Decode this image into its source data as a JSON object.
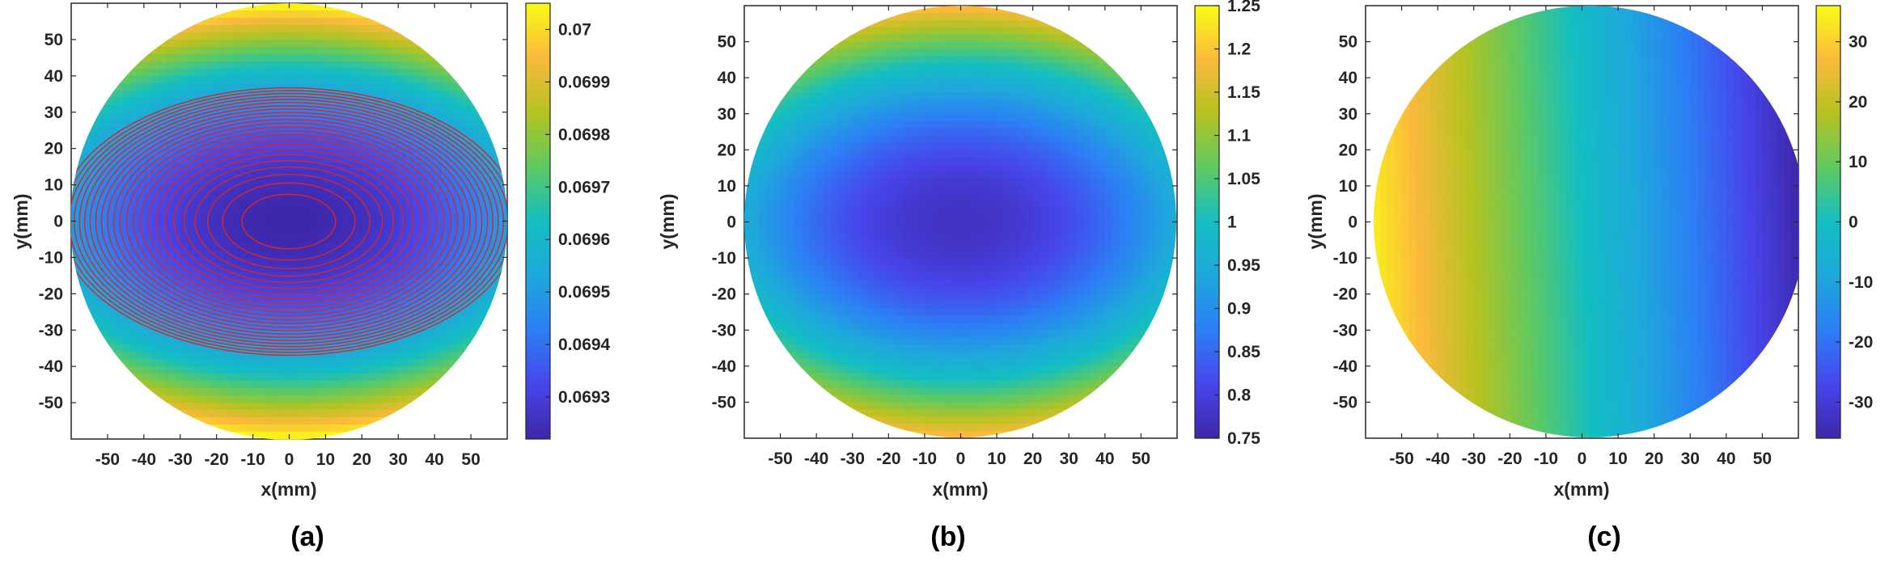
{
  "chart_data": [
    {
      "type": "heatmap",
      "panel_label": "(a)",
      "xlabel": "x(mm)",
      "ylabel": "y(mm)",
      "xlim": [
        -60,
        60
      ],
      "ylim": [
        -60,
        60
      ],
      "x_ticks": [
        -50,
        -40,
        -30,
        -20,
        -10,
        0,
        10,
        20,
        30,
        40,
        50
      ],
      "y_ticks": [
        50,
        40,
        30,
        20,
        10,
        0,
        -10,
        -20,
        -30,
        -40,
        -50
      ],
      "aperture_radius": 60,
      "contours": true,
      "contour_color": "#d62728",
      "colorbar": {
        "range": [
          0.06922,
          0.07005
        ],
        "ticks": [
          "0.07",
          "0.0699",
          "0.0698",
          "0.0697",
          "0.0696",
          "0.0695",
          "0.0694",
          "0.0693"
        ],
        "tick_values": [
          0.07,
          0.0699,
          0.0698,
          0.0697,
          0.0696,
          0.0695,
          0.0694,
          0.0693
        ]
      },
      "colormap": "parula",
      "field": "elliptical paraboloid, minimum at center, larger along y"
    },
    {
      "type": "heatmap",
      "panel_label": "(b)",
      "xlabel": "x(mm)",
      "ylabel": "y(mm)",
      "xlim": [
        -60,
        60
      ],
      "ylim": [
        -60,
        60
      ],
      "x_ticks": [
        -50,
        -40,
        -30,
        -20,
        -10,
        0,
        10,
        20,
        30,
        40,
        50
      ],
      "y_ticks": [
        50,
        40,
        30,
        20,
        10,
        0,
        -10,
        -20,
        -30,
        -40,
        -50
      ],
      "aperture_radius": 60,
      "contours": false,
      "colorbar": {
        "range": [
          0.75,
          1.25
        ],
        "ticks": [
          "1.25",
          "1.2",
          "1.15",
          "1.1",
          "1.05",
          "1",
          "0.95",
          "0.9",
          "0.85",
          "0.8",
          "0.75"
        ],
        "tick_values": [
          1.25,
          1.2,
          1.15,
          1.1,
          1.05,
          1.0,
          0.95,
          0.9,
          0.85,
          0.8,
          0.75
        ]
      },
      "colormap": "parula",
      "field": "minimum at center, maximum at top and bottom edges"
    },
    {
      "type": "heatmap",
      "panel_label": "(c)",
      "xlabel": "x(mm)",
      "ylabel": "y(mm)",
      "xlim": [
        -60,
        60
      ],
      "ylim": [
        -60,
        60
      ],
      "x_ticks": [
        -50,
        -40,
        -30,
        -20,
        -10,
        0,
        10,
        20,
        30,
        40,
        50
      ],
      "y_ticks": [
        50,
        40,
        30,
        20,
        10,
        0,
        -10,
        -20,
        -30,
        -40,
        -50
      ],
      "aperture_radius": 60,
      "contours": false,
      "colorbar": {
        "range": [
          -36,
          36
        ],
        "ticks": [
          "30",
          "20",
          "10",
          "0",
          "-10",
          "-20",
          "-30"
        ],
        "tick_values": [
          30,
          20,
          10,
          0,
          -10,
          -20,
          -30
        ]
      },
      "colormap": "parula",
      "field": "linear gradient in x, high at left, low at right"
    }
  ]
}
